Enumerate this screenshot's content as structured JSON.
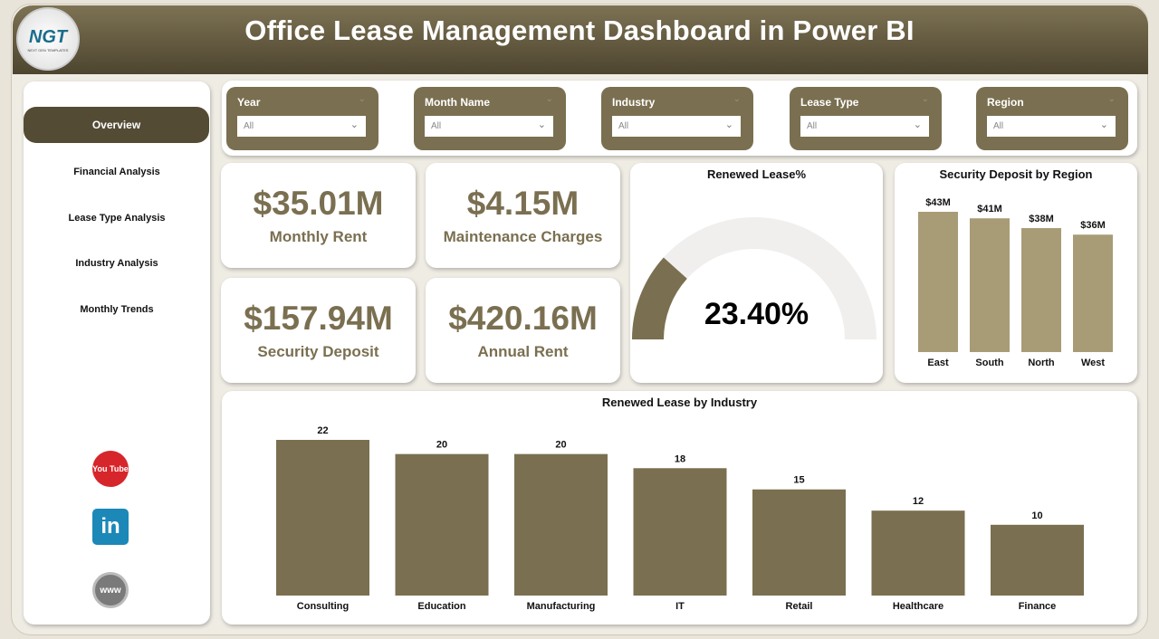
{
  "header": {
    "title": "Office Lease Management Dashboard in Power BI",
    "logo_text": "NGT",
    "logo_sub": "NEXT GEN TEMPLATES"
  },
  "sidebar": {
    "items": [
      {
        "label": "Overview",
        "active": true
      },
      {
        "label": "Financial Analysis"
      },
      {
        "label": "Lease Type Analysis"
      },
      {
        "label": "Industry Analysis"
      },
      {
        "label": "Monthly Trends"
      }
    ],
    "social": [
      {
        "name": "youtube",
        "text": "You Tube",
        "color": "#d6262b"
      },
      {
        "name": "linkedin",
        "text": "in",
        "color": "#1b88b8"
      },
      {
        "name": "website",
        "text": "www",
        "color": "#7a7a7a"
      }
    ]
  },
  "filters": [
    {
      "label": "Year",
      "value": "All"
    },
    {
      "label": "Month Name",
      "value": "All"
    },
    {
      "label": "Industry",
      "value": "All"
    },
    {
      "label": "Lease Type",
      "value": "All"
    },
    {
      "label": "Region",
      "value": "All"
    }
  ],
  "kpis": [
    {
      "value": "$35.01M",
      "label": "Monthly Rent"
    },
    {
      "value": "$4.15M",
      "label": "Maintenance Charges"
    },
    {
      "value": "$157.94M",
      "label": "Security Deposit"
    },
    {
      "value": "$420.16M",
      "label": "Annual Rent"
    }
  ],
  "colors": {
    "accent": "#7a6f50",
    "dark": "#544b35",
    "region_bar": "#a89c77",
    "gauge_track": "#f1efee"
  },
  "chart_data": [
    {
      "type": "gauge",
      "title": "Renewed Lease%",
      "value": 23.4,
      "label": "23.40%",
      "max": 100
    },
    {
      "type": "bar",
      "title": "Security Deposit by Region",
      "categories": [
        "East",
        "South",
        "North",
        "West"
      ],
      "values": [
        43,
        41,
        38,
        36
      ],
      "data_labels": [
        "$43M",
        "$41M",
        "$38M",
        "$36M"
      ],
      "unit": "$M"
    },
    {
      "type": "bar",
      "title": "Renewed Lease by Industry",
      "categories": [
        "Consulting",
        "Education",
        "Manufacturing",
        "IT",
        "Retail",
        "Healthcare",
        "Finance"
      ],
      "values": [
        22,
        20,
        20,
        18,
        15,
        12,
        10
      ]
    }
  ]
}
